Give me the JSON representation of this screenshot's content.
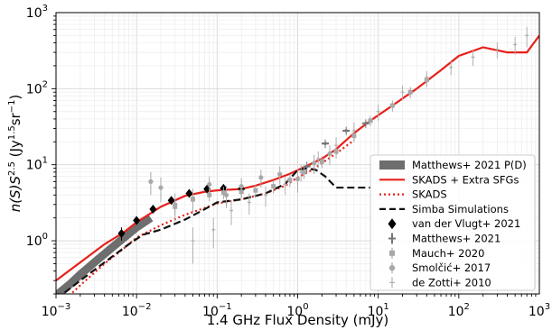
{
  "chart_data": {
    "type": "line",
    "title": "",
    "xlabel": "1.4 GHz Flux Density (mJy)",
    "ylabel_base": "n(S)S",
    "ylabel_exp": "2.5",
    "ylabel_unit_main": " (Jy",
    "ylabel_unit_exp1": "1.5",
    "ylabel_unit_mid": "sr",
    "ylabel_unit_exp2": "−1",
    "ylabel_unit_end": ")",
    "x_scale": "log",
    "y_scale": "log",
    "xlim": [
      0.001,
      1000
    ],
    "ylim": [
      0.2,
      1000
    ],
    "x_ticks": [
      {
        "value": 0.001,
        "base": "10",
        "exp": "−3"
      },
      {
        "value": 0.01,
        "base": "10",
        "exp": "−2"
      },
      {
        "value": 0.1,
        "base": "10",
        "exp": "−1"
      },
      {
        "value": 1,
        "base": "10",
        "exp": "0"
      },
      {
        "value": 10,
        "base": "10",
        "exp": "1"
      },
      {
        "value": 100,
        "base": "10",
        "exp": "2"
      },
      {
        "value": 1000,
        "base": "10",
        "exp": "3"
      }
    ],
    "y_ticks": [
      {
        "value": 1,
        "base": "10",
        "exp": "0"
      },
      {
        "value": 10,
        "base": "10",
        "exp": "1"
      },
      {
        "value": 100,
        "base": "10",
        "exp": "2"
      },
      {
        "value": 1000,
        "base": "10",
        "exp": "3"
      }
    ],
    "grid": true,
    "legend_position": "center-right",
    "series": [
      {
        "name": "Matthews+ 2021 P(D)",
        "kind": "band",
        "color": "#6e6e6e",
        "x": [
          0.001,
          0.0015,
          0.002,
          0.003,
          0.005,
          0.007,
          0.01,
          0.015
        ],
        "y": [
          0.19,
          0.27,
          0.36,
          0.52,
          0.82,
          1.1,
          1.5,
          2.0
        ]
      },
      {
        "name": "SKADS + Extra SFGs",
        "kind": "line",
        "dash": "solid",
        "color": "#e8201a",
        "x": [
          0.001,
          0.002,
          0.004,
          0.007,
          0.01,
          0.02,
          0.04,
          0.07,
          0.1,
          0.2,
          0.3,
          0.5,
          0.8,
          1.2,
          2,
          3,
          5,
          8,
          15,
          30,
          60,
          100,
          200,
          400,
          700,
          1000
        ],
        "y": [
          0.3,
          0.52,
          0.9,
          1.3,
          1.75,
          2.8,
          3.9,
          4.4,
          4.6,
          4.8,
          5.3,
          6.3,
          7.6,
          9.3,
          12,
          16,
          26,
          38,
          60,
          100,
          175,
          270,
          350,
          300,
          300,
          500
        ]
      },
      {
        "name": "SKADS",
        "kind": "line",
        "dash": "dotted",
        "color": "#e8201a",
        "x": [
          0.001,
          0.002,
          0.004,
          0.007,
          0.01,
          0.02,
          0.04,
          0.07,
          0.1,
          0.2,
          0.4,
          0.7,
          1.0,
          1.5,
          2,
          3,
          5
        ],
        "y": [
          0.13,
          0.26,
          0.5,
          0.8,
          1.1,
          1.6,
          2.2,
          2.7,
          3.1,
          3.5,
          4.2,
          5.3,
          6.8,
          8.5,
          10.5,
          14,
          21
        ]
      },
      {
        "name": "Simba Simulations",
        "kind": "line",
        "dash": "dashed",
        "color": "#111111",
        "x": [
          0.001,
          0.002,
          0.004,
          0.008,
          0.012,
          0.02,
          0.04,
          0.07,
          0.1,
          0.2,
          0.4,
          0.7,
          1.0,
          1.3,
          1.7,
          2.2,
          3,
          4,
          6,
          8
        ],
        "y": [
          0.17,
          0.3,
          0.52,
          0.9,
          1.2,
          1.4,
          1.9,
          2.6,
          3.2,
          3.5,
          4.2,
          5.6,
          8.5,
          9.0,
          8.5,
          7.0,
          5.0,
          5.0,
          5.0,
          5.0
        ]
      },
      {
        "name": "van der Vlugt+ 2021",
        "kind": "points",
        "marker": "diamond",
        "color": "#000000",
        "x": [
          0.0065,
          0.01,
          0.016,
          0.027,
          0.045,
          0.075,
          0.12,
          0.2
        ],
        "y": [
          1.25,
          1.85,
          2.6,
          3.4,
          4.2,
          4.8,
          4.9,
          4.8
        ],
        "yerr": [
          0.25,
          0.2,
          0.2,
          0.25,
          0.3,
          0.35,
          0.4,
          0.45
        ]
      },
      {
        "name": "Matthews+ 2021",
        "kind": "points",
        "marker": "errorbar",
        "color": "#757575",
        "x": [
          1.3,
          2.2,
          4.0,
          7.0
        ],
        "y": [
          9.5,
          19,
          28,
          35
        ],
        "yerr": [
          1.5,
          2.5,
          3.5,
          4.5
        ]
      },
      {
        "name": "Mauch+ 2020",
        "kind": "points",
        "marker": "square",
        "color": "#a8a8a8",
        "x": [
          0.03,
          0.05,
          0.08,
          0.12,
          0.2,
          0.3,
          0.5,
          0.8,
          1.2,
          2.0,
          3.0,
          5.0,
          8.0,
          15,
          25,
          40
        ],
        "y": [
          2.8,
          3.5,
          4.0,
          4.3,
          4.4,
          4.6,
          5.2,
          6.3,
          8.0,
          11,
          15,
          24,
          38,
          60,
          90,
          130
        ],
        "yerr": [
          0.6,
          0.6,
          0.7,
          0.8,
          0.8,
          0.9,
          1.0,
          1.2,
          1.5,
          2.0,
          3.0,
          4.0,
          6.0,
          10,
          15,
          25
        ]
      },
      {
        "name": "Smolčić+ 2017",
        "kind": "points",
        "marker": "circle",
        "color": "#a8a8a8",
        "x": [
          0.015,
          0.02,
          0.03,
          0.05,
          0.08,
          0.13,
          0.2,
          0.35,
          0.6,
          1.0,
          1.6,
          2.5
        ],
        "y": [
          6.0,
          5.0,
          3.0,
          3.6,
          5.5,
          4.0,
          5.2,
          6.8,
          7.5,
          6.5,
          10.5,
          14
        ],
        "yerr": [
          2.0,
          1.8,
          1.2,
          1.2,
          1.5,
          1.3,
          1.5,
          1.8,
          2.0,
          2.2,
          3.0,
          4.0
        ]
      },
      {
        "name": "de Zotti+ 2010",
        "kind": "points",
        "marker": "plus",
        "color": "#b0b0b0",
        "x": [
          0.05,
          0.09,
          0.15,
          0.25,
          0.4,
          0.7,
          1.1,
          1.8,
          3.0,
          5.0,
          10,
          20,
          40,
          80,
          150,
          300,
          500,
          700
        ],
        "y": [
          1.0,
          1.4,
          2.5,
          3.2,
          4.0,
          5.5,
          8.0,
          12,
          18,
          28,
          50,
          90,
          140,
          190,
          260,
          330,
          380,
          500
        ],
        "yerr": [
          0.5,
          0.6,
          0.9,
          1.0,
          1.2,
          1.5,
          2.0,
          3.0,
          5.0,
          8.0,
          12,
          20,
          30,
          40,
          60,
          80,
          100,
          150
        ]
      }
    ]
  }
}
